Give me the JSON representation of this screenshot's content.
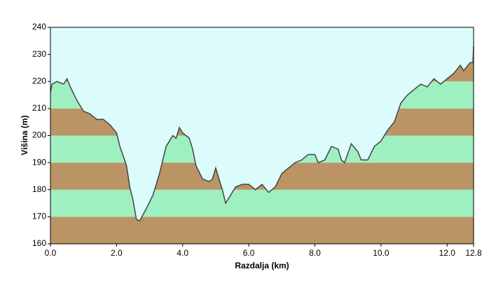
{
  "chart_data": {
    "type": "area",
    "xlabel": "Razdalja  (km)",
    "ylabel": "Višina (m)",
    "x": [
      0.0,
      0.05,
      0.2,
      0.4,
      0.5,
      0.6,
      0.8,
      1.0,
      1.2,
      1.4,
      1.6,
      1.8,
      2.0,
      2.1,
      2.3,
      2.4,
      2.5,
      2.6,
      2.7,
      2.9,
      3.1,
      3.3,
      3.5,
      3.7,
      3.8,
      3.9,
      4.0,
      4.2,
      4.3,
      4.4,
      4.6,
      4.8,
      4.9,
      5.0,
      5.1,
      5.2,
      5.3,
      5.4,
      5.6,
      5.8,
      6.0,
      6.2,
      6.4,
      6.6,
      6.8,
      7.0,
      7.2,
      7.4,
      7.6,
      7.8,
      8.0,
      8.1,
      8.3,
      8.5,
      8.7,
      8.8,
      8.9,
      9.1,
      9.3,
      9.4,
      9.6,
      9.8,
      10.0,
      10.2,
      10.4,
      10.6,
      10.8,
      11.0,
      11.2,
      11.4,
      11.6,
      11.8,
      12.0,
      12.2,
      12.4,
      12.5,
      12.7,
      12.78,
      12.8
    ],
    "y": [
      216,
      219,
      220,
      219,
      221,
      218,
      213,
      209,
      208,
      206,
      206,
      204,
      201,
      196,
      189,
      181,
      176,
      169,
      168.5,
      173,
      178,
      186,
      196,
      200,
      199,
      203,
      201,
      199,
      195,
      189,
      184,
      183,
      184,
      188,
      184,
      180,
      175,
      177,
      181,
      182,
      182,
      180,
      182,
      179,
      181,
      186,
      188,
      190,
      191,
      193,
      193,
      190,
      191,
      196,
      195,
      191,
      190,
      197,
      194,
      191,
      191,
      196,
      198,
      202,
      205,
      212,
      215,
      217,
      219,
      218,
      221,
      219,
      221,
      223,
      226,
      224,
      227,
      227,
      233
    ],
    "xlim": [
      0,
      12.8
    ],
    "ylim": [
      160,
      240
    ],
    "xticks": [
      {
        "value": 0,
        "label": "0.0"
      },
      {
        "value": 2,
        "label": "2.0"
      },
      {
        "value": 4,
        "label": "4.0"
      },
      {
        "value": 6,
        "label": "6.0"
      },
      {
        "value": 8,
        "label": "8.0"
      },
      {
        "value": 10,
        "label": "10.0"
      },
      {
        "value": 12,
        "label": "12.0"
      },
      {
        "value": 12.8,
        "label": "12.8"
      }
    ],
    "yticks": [
      160,
      170,
      180,
      190,
      200,
      210,
      220,
      230,
      240
    ],
    "band_colors": [
      "#bb9466",
      "#9ff0c0"
    ],
    "line_color": "#444444",
    "background": "#dcfcfc"
  }
}
